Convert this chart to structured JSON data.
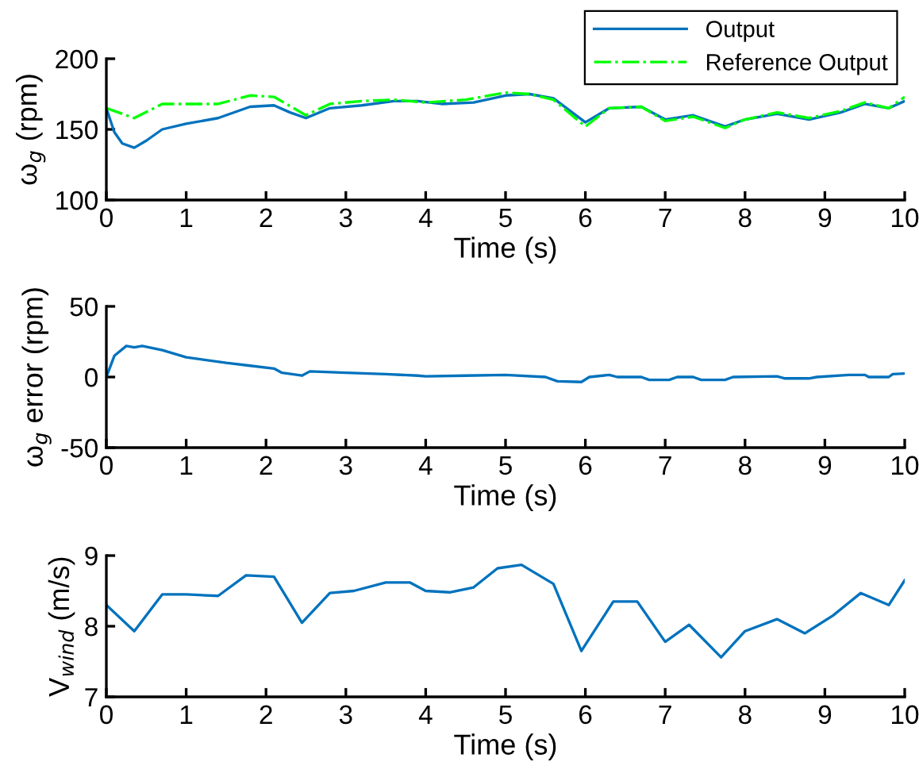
{
  "chart_data": [
    {
      "type": "line",
      "xlabel": "Time (s)",
      "ylabel": "ω$_{g}$ (rpm)",
      "xlim": [
        0,
        10
      ],
      "xticks": [
        0,
        1,
        2,
        3,
        4,
        5,
        6,
        7,
        8,
        9,
        10
      ],
      "ylim": [
        100,
        200
      ],
      "yticks": [
        100,
        150,
        200
      ],
      "grid": false,
      "legend": "top right",
      "series": [
        {
          "name": "Output",
          "color": "#0072bd",
          "line_style": "solid",
          "x": [
            0,
            0.1,
            0.2,
            0.35,
            0.5,
            0.7,
            1,
            1.4,
            1.8,
            2.1,
            2.3,
            2.5,
            2.8,
            3.2,
            3.6,
            3.9,
            4.2,
            4.6,
            5,
            5.3,
            5.6,
            6,
            6.3,
            6.7,
            7,
            7.35,
            7.75,
            8,
            8.4,
            8.8,
            9.2,
            9.5,
            9.8,
            10
          ],
          "values": [
            165,
            148,
            140,
            137,
            142,
            150,
            154,
            158,
            166,
            167,
            162,
            158,
            165,
            167,
            170,
            170,
            168,
            169,
            174,
            175,
            172,
            155,
            165,
            166,
            157,
            160,
            152,
            157,
            161,
            157,
            162,
            168,
            165,
            170
          ]
        },
        {
          "name": "Reference Output",
          "color": "#00ff00",
          "line_style": "dashdot",
          "x": [
            0,
            0.35,
            0.7,
            1,
            1.4,
            1.8,
            2.1,
            2.5,
            2.8,
            3.2,
            3.6,
            4,
            4.5,
            5,
            5.3,
            5.6,
            6,
            6.3,
            6.7,
            7,
            7.35,
            7.75,
            8,
            8.4,
            8.8,
            9.2,
            9.5,
            9.8,
            10
          ],
          "values": [
            165,
            158,
            168,
            168,
            168,
            174,
            173,
            160,
            168,
            170,
            171,
            169,
            171,
            176,
            175,
            171,
            152,
            165,
            166,
            156,
            159,
            151,
            157,
            162,
            158,
            163,
            169,
            165,
            173
          ]
        }
      ]
    },
    {
      "type": "line",
      "xlabel": "Time (s)",
      "ylabel": "ω$_{g}$ error (rpm)",
      "xlim": [
        0,
        10
      ],
      "xticks": [
        0,
        1,
        2,
        3,
        4,
        5,
        6,
        7,
        8,
        9,
        10
      ],
      "ylim": [
        -50,
        50
      ],
      "yticks": [
        -50,
        0,
        50
      ],
      "grid": false,
      "legend": false,
      "series": [
        {
          "color": "#0072bd",
          "line_style": "solid",
          "x": [
            0,
            0.1,
            0.25,
            0.35,
            0.45,
            0.7,
            1,
            1.5,
            1.8,
            2.1,
            2.2,
            2.45,
            2.55,
            3,
            3.5,
            3.9,
            4,
            4.5,
            5,
            5.5,
            5.65,
            5.95,
            6.05,
            6.3,
            6.4,
            6.7,
            6.8,
            7.05,
            7.15,
            7.35,
            7.45,
            7.75,
            7.85,
            8.4,
            8.5,
            8.8,
            8.9,
            9.3,
            9.5,
            9.55,
            9.8,
            9.85,
            10
          ],
          "values": [
            0,
            15,
            22,
            21,
            22,
            19,
            14,
            10,
            8,
            6,
            3,
            1,
            4,
            3,
            2,
            1,
            0.5,
            1,
            1.5,
            0,
            -3,
            -3.5,
            0,
            1.5,
            0,
            0,
            -2,
            -2,
            0,
            0,
            -2,
            -2,
            0,
            0.5,
            -1,
            -1,
            0,
            1.5,
            1.5,
            0,
            0,
            2,
            2.5
          ]
        }
      ]
    },
    {
      "type": "line",
      "xlabel": "Time (s)",
      "ylabel": "V$_{wind}$ (m/s)",
      "xlim": [
        0,
        10
      ],
      "xticks": [
        0,
        1,
        2,
        3,
        4,
        5,
        6,
        7,
        8,
        9,
        10
      ],
      "ylim": [
        7,
        9
      ],
      "yticks": [
        7,
        8,
        9
      ],
      "grid": false,
      "legend": false,
      "series": [
        {
          "color": "#0072bd",
          "line_style": "solid",
          "x": [
            0,
            0.35,
            0.7,
            1,
            1.4,
            1.75,
            2.1,
            2.45,
            2.8,
            3.1,
            3.5,
            3.8,
            4,
            4.3,
            4.6,
            4.9,
            5.2,
            5.6,
            5.95,
            6.35,
            6.65,
            7,
            7.3,
            7.7,
            8,
            8.4,
            8.75,
            9.1,
            9.45,
            9.8,
            10
          ],
          "values": [
            8.3,
            7.93,
            8.45,
            8.45,
            8.43,
            8.72,
            8.7,
            8.05,
            8.47,
            8.5,
            8.62,
            8.62,
            8.5,
            8.48,
            8.55,
            8.82,
            8.87,
            8.6,
            7.65,
            8.35,
            8.35,
            7.78,
            8.02,
            7.56,
            7.93,
            8.1,
            7.9,
            8.15,
            8.47,
            8.3,
            8.65
          ]
        }
      ]
    }
  ]
}
